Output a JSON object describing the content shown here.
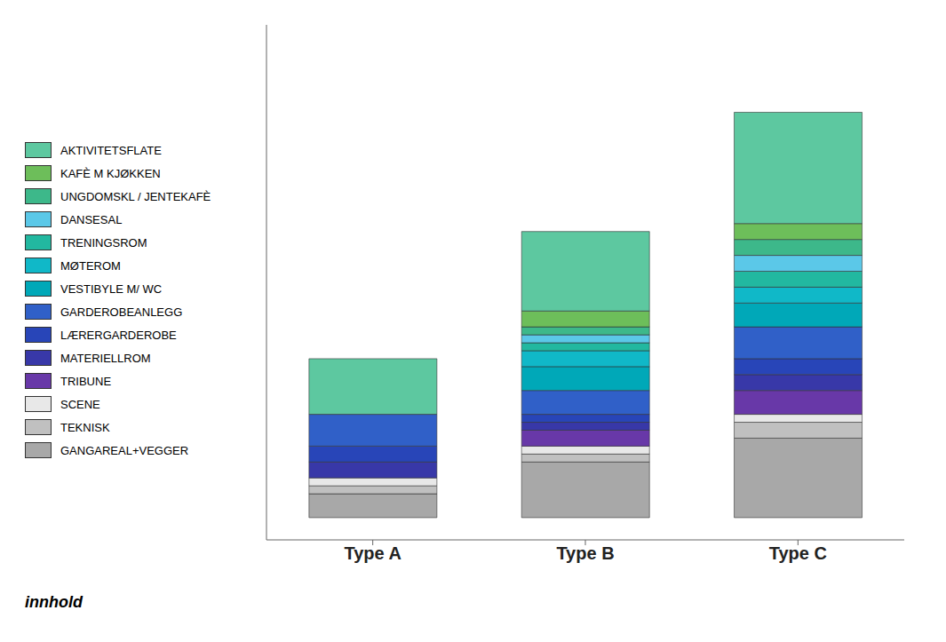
{
  "chart_data": {
    "type": "bar",
    "stacked": true,
    "categories": [
      "Type A",
      "Type B",
      "Type C"
    ],
    "series": [
      {
        "name": "AKTIVITETSFLATE",
        "color": "#5DC8A0",
        "values": [
          7,
          10,
          14
        ]
      },
      {
        "name": "KAFÈ M KJØKKEN",
        "color": "#6DBE5A",
        "values": [
          0,
          2,
          2
        ]
      },
      {
        "name": "UNGDOMSKL / JENTEKAFÈ",
        "color": "#3DB88A",
        "values": [
          0,
          1,
          2
        ]
      },
      {
        "name": "DANSESAL",
        "color": "#5BC8E8",
        "values": [
          0,
          1,
          2
        ]
      },
      {
        "name": "TRENINGSROM",
        "color": "#22B8A0",
        "values": [
          0,
          1,
          2
        ]
      },
      {
        "name": "MØTEROM",
        "color": "#10B8C8",
        "values": [
          0,
          2,
          2
        ]
      },
      {
        "name": "VESTIBYLE M/ WC",
        "color": "#00A8B8",
        "values": [
          0,
          3,
          3
        ]
      },
      {
        "name": "GARDEROBEANLEGG",
        "color": "#3060C8",
        "values": [
          4,
          3,
          4
        ]
      },
      {
        "name": "LÆRERGARDEROBE",
        "color": "#2845B8",
        "values": [
          2,
          1,
          2
        ]
      },
      {
        "name": "MATERIELLROM",
        "color": "#3838A8",
        "values": [
          2,
          1,
          2
        ]
      },
      {
        "name": "TRIBUNE",
        "color": "#6838A8",
        "values": [
          0,
          2,
          3
        ]
      },
      {
        "name": "SCENE",
        "color": "#E8E8E8",
        "values": [
          1,
          1,
          1
        ]
      },
      {
        "name": "TEKNISK",
        "color": "#C0C0C0",
        "values": [
          1,
          1,
          2
        ]
      },
      {
        "name": "GANGAREAL+VEGGER",
        "color": "#A8A8A8",
        "values": [
          3,
          7,
          10
        ]
      }
    ],
    "ylim": [
      -2.8,
      62
    ],
    "tick_labels": false,
    "grid": false,
    "legend": "left",
    "annotations": [
      "innhold"
    ]
  }
}
